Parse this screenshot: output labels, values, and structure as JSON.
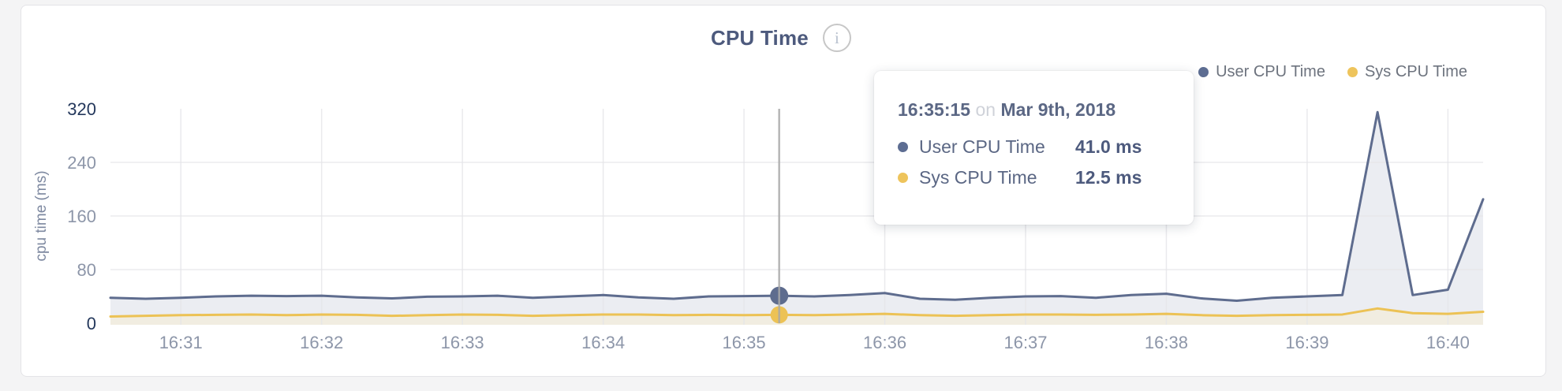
{
  "header": {
    "title": "CPU Time",
    "info_icon": "i"
  },
  "legend": {
    "items": [
      {
        "label": "User CPU Time",
        "color": "#5d6d92"
      },
      {
        "label": "Sys CPU Time",
        "color": "#eec45c"
      }
    ]
  },
  "tooltip": {
    "time": "16:35:15",
    "connector": "on",
    "date": "Mar 9th, 2018",
    "rows": [
      {
        "label": "User CPU Time",
        "value": "41.0 ms",
        "color": "#5d6d92"
      },
      {
        "label": "Sys CPU Time",
        "value": "12.5 ms",
        "color": "#eec45c"
      }
    ]
  },
  "chart_data": {
    "type": "area",
    "title": "CPU Time",
    "xlabel": "",
    "ylabel": "cpu time (ms)",
    "ylim": [
      0,
      320
    ],
    "y_ticks": [
      0,
      80,
      160,
      240,
      320
    ],
    "y_gridlines": [
      80,
      160,
      240
    ],
    "x_ticks": [
      "16:31",
      "16:32",
      "16:33",
      "16:34",
      "16:35",
      "16:36",
      "16:37",
      "16:38",
      "16:39",
      "16:40"
    ],
    "x_tick_offsets_seconds": [
      30,
      90,
      150,
      210,
      270,
      330,
      390,
      450,
      510,
      570
    ],
    "start_time": "16:30:30",
    "end_time": "16:40:15",
    "interval_seconds": 15,
    "grid": true,
    "legend_position": "top-right",
    "series": [
      {
        "name": "User CPU Time",
        "color": "#5e6c8e",
        "fill": "#e9ebf1",
        "values": [
          38,
          36.5,
          38,
          40,
          41,
          40.5,
          41,
          38.5,
          37,
          39.5,
          40,
          41,
          38,
          40,
          42,
          38.5,
          36.5,
          40,
          40.5,
          41,
          40,
          42,
          45,
          36.5,
          35,
          38,
          40,
          40.5,
          38,
          42,
          44,
          37,
          33.5,
          38,
          40,
          42,
          315,
          42,
          50,
          185
        ]
      },
      {
        "name": "Sys CPU Time",
        "color": "#ecc255",
        "fill": "#f1ede0",
        "values": [
          10,
          11,
          12,
          12.5,
          13,
          12,
          13,
          12.5,
          11,
          12,
          13,
          12.5,
          11,
          12,
          13,
          13,
          12,
          12.5,
          12,
          12.5,
          12,
          13,
          14,
          12,
          11,
          12,
          13,
          13,
          12.5,
          13,
          14,
          12,
          11,
          12,
          12.5,
          13,
          22,
          15,
          14,
          17
        ]
      }
    ],
    "hover": {
      "time": "16:35:15",
      "date": "Mar 9th, 2018",
      "index": 19,
      "user_cpu_ms": 41.0,
      "sys_cpu_ms": 12.5,
      "line_color": "#a9a9a9"
    },
    "colors": {
      "tick_label": "#8d96a9",
      "tick_label_extremes": "#24385c",
      "gridline": "#e5e5e8",
      "axis_title": "#7d88a0"
    }
  }
}
